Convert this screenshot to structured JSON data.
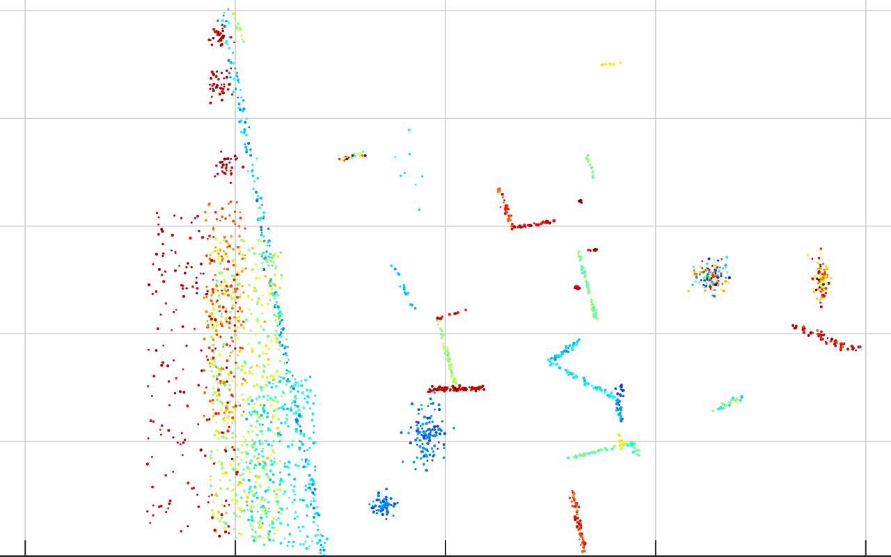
{
  "chart_data": {
    "type": "scatter",
    "title": "",
    "xlabel": "",
    "ylabel": "",
    "grid": true,
    "colormap": "jet",
    "color_range": [
      0,
      1
    ],
    "xlim": [
      -0.12,
      4.12
    ],
    "ylim": [
      -0.06,
      5.1
    ],
    "xticks": [
      0,
      1,
      2,
      3,
      4
    ],
    "yticks": [
      1,
      2,
      3,
      4,
      5
    ],
    "colors": {
      "grid": "#c8c8c8",
      "axis": "#262626",
      "background": "#ffffff"
    },
    "clusters": [
      {
        "name": "left-wall-line",
        "kind": "line",
        "from": [
          0.94,
          5.0
        ],
        "to": [
          1.42,
          -0.05
        ],
        "count": 260,
        "spread": 0.012,
        "c": [
          0.22,
          0.45
        ]
      },
      {
        "name": "ground-band-yellow-green",
        "kind": "box",
        "x": [
          0.88,
          1.22
        ],
        "y": [
          0.1,
          2.9
        ],
        "count": 520,
        "c": [
          0.45,
          0.7
        ]
      },
      {
        "name": "ground-band-cyan",
        "kind": "box",
        "x": [
          1.05,
          1.38
        ],
        "y": [
          0.0,
          1.6
        ],
        "count": 260,
        "c": [
          0.3,
          0.45
        ]
      },
      {
        "name": "ground-band-orange",
        "kind": "box",
        "x": [
          0.85,
          1.05
        ],
        "y": [
          1.2,
          3.3
        ],
        "count": 160,
        "c": [
          0.72,
          0.85
        ]
      },
      {
        "name": "curb-red-dots",
        "kind": "box",
        "x": [
          0.58,
          1.02
        ],
        "y": [
          0.12,
          2.7
        ],
        "count": 140,
        "c": [
          0.85,
          0.98
        ]
      },
      {
        "name": "tree-top-red",
        "kind": "blob",
        "center": [
          0.92,
          4.75
        ],
        "sx": 0.03,
        "sy": 0.05,
        "count": 30,
        "c": [
          0.88,
          1.0
        ]
      },
      {
        "name": "tree-mid-red",
        "kind": "blob",
        "center": [
          0.93,
          4.32
        ],
        "sx": 0.03,
        "sy": 0.08,
        "count": 35,
        "c": [
          0.88,
          1.0
        ]
      },
      {
        "name": "tree-low-red",
        "kind": "blob",
        "center": [
          0.96,
          3.55
        ],
        "sx": 0.03,
        "sy": 0.06,
        "count": 30,
        "c": [
          0.9,
          1.0
        ]
      },
      {
        "name": "far-left-red",
        "kind": "box",
        "x": [
          0.6,
          0.85
        ],
        "y": [
          2.3,
          3.2
        ],
        "count": 40,
        "c": [
          0.88,
          1.0
        ]
      },
      {
        "name": "top-upper-thin",
        "kind": "line",
        "from": [
          0.99,
          4.98
        ],
        "to": [
          1.04,
          4.72
        ],
        "count": 12,
        "spread": 0.005,
        "c": [
          0.45,
          0.6
        ]
      },
      {
        "name": "small-seg-upper",
        "kind": "line",
        "from": [
          1.5,
          3.62
        ],
        "to": [
          1.62,
          3.68
        ],
        "count": 22,
        "spread": 0.01,
        "c": [
          0.35,
          1.0
        ]
      },
      {
        "name": "corner-wall-vertical",
        "kind": "line",
        "from": [
          2.25,
          3.35
        ],
        "to": [
          2.32,
          3.0
        ],
        "count": 30,
        "spread": 0.008,
        "c": [
          0.75,
          0.92
        ]
      },
      {
        "name": "corner-wall-horizontal",
        "kind": "line",
        "from": [
          2.32,
          2.98
        ],
        "to": [
          2.52,
          3.05
        ],
        "count": 40,
        "spread": 0.008,
        "c": [
          0.85,
          0.98
        ]
      },
      {
        "name": "isolated-dark-dot",
        "kind": "blob",
        "center": [
          2.64,
          3.23
        ],
        "sx": 0.004,
        "sy": 0.006,
        "count": 4,
        "c": [
          0.98,
          1.0
        ]
      },
      {
        "name": "top-right-yellow",
        "kind": "line",
        "from": [
          2.74,
          4.5
        ],
        "to": [
          2.84,
          4.51
        ],
        "count": 8,
        "spread": 0.004,
        "c": [
          0.62,
          0.68
        ]
      },
      {
        "name": "top-right-green-seg",
        "kind": "line",
        "from": [
          2.67,
          3.66
        ],
        "to": [
          2.71,
          3.43
        ],
        "count": 14,
        "spread": 0.004,
        "c": [
          0.45,
          0.55
        ]
      },
      {
        "name": "sparse-cyan-upper",
        "kind": "box",
        "x": [
          1.74,
          1.9
        ],
        "y": [
          2.9,
          4.0
        ],
        "count": 8,
        "c": [
          0.3,
          0.4
        ]
      },
      {
        "name": "pole-green",
        "kind": "line",
        "from": [
          1.96,
          2.16
        ],
        "to": [
          2.05,
          1.5
        ],
        "count": 45,
        "spread": 0.005,
        "c": [
          0.45,
          0.6
        ]
      },
      {
        "name": "pole-top-red",
        "kind": "line",
        "from": [
          1.96,
          2.14
        ],
        "to": [
          2.1,
          2.22
        ],
        "count": 12,
        "spread": 0.005,
        "c": [
          0.85,
          0.95
        ]
      },
      {
        "name": "red-bar-center",
        "kind": "line",
        "from": [
          1.92,
          1.48
        ],
        "to": [
          2.18,
          1.5
        ],
        "count": 80,
        "spread": 0.012,
        "c": [
          0.88,
          1.0
        ]
      },
      {
        "name": "cyan-dots-mid",
        "kind": "line",
        "from": [
          1.75,
          2.65
        ],
        "to": [
          1.85,
          2.22
        ],
        "count": 14,
        "spread": 0.01,
        "c": [
          0.28,
          0.36
        ]
      },
      {
        "name": "blue-blob-mid",
        "kind": "blob",
        "center": [
          1.91,
          1.05
        ],
        "sx": 0.04,
        "sy": 0.15,
        "count": 120,
        "c": [
          0.18,
          0.3
        ]
      },
      {
        "name": "blue-blob-bottom",
        "kind": "blob",
        "center": [
          1.7,
          0.4
        ],
        "sx": 0.025,
        "sy": 0.05,
        "count": 60,
        "c": [
          0.18,
          0.3
        ]
      },
      {
        "name": "diag-pole-green",
        "kind": "line",
        "from": [
          2.63,
          2.77
        ],
        "to": [
          2.72,
          2.12
        ],
        "count": 50,
        "spread": 0.005,
        "c": [
          0.42,
          0.55
        ]
      },
      {
        "name": "diag-pole-top-red",
        "kind": "blob",
        "center": [
          2.71,
          2.78
        ],
        "sx": 0.015,
        "sy": 0.006,
        "count": 10,
        "c": [
          0.88,
          1.0
        ]
      },
      {
        "name": "red-small-mid",
        "kind": "blob",
        "center": [
          2.63,
          2.43
        ],
        "sx": 0.01,
        "sy": 0.007,
        "count": 14,
        "c": [
          0.88,
          1.0
        ]
      },
      {
        "name": "v-shape-arm-up",
        "kind": "line",
        "from": [
          2.49,
          1.74
        ],
        "to": [
          2.64,
          1.94
        ],
        "count": 45,
        "spread": 0.01,
        "c": [
          0.25,
          0.38
        ]
      },
      {
        "name": "v-shape-arm-down",
        "kind": "line",
        "from": [
          2.49,
          1.74
        ],
        "to": [
          2.81,
          1.4
        ],
        "count": 60,
        "spread": 0.008,
        "c": [
          0.3,
          0.42
        ]
      },
      {
        "name": "v-shape-tail",
        "kind": "line",
        "from": [
          2.81,
          1.4
        ],
        "to": [
          2.84,
          1.2
        ],
        "count": 25,
        "spread": 0.006,
        "c": [
          0.22,
          0.32
        ]
      },
      {
        "name": "blue-dots-right",
        "kind": "blob",
        "center": [
          2.84,
          1.45
        ],
        "sx": 0.01,
        "sy": 0.06,
        "count": 14,
        "c": [
          0.15,
          0.24
        ]
      },
      {
        "name": "bottom-green-line",
        "kind": "line",
        "from": [
          2.6,
          0.85
        ],
        "to": [
          2.88,
          0.98
        ],
        "count": 50,
        "spread": 0.006,
        "c": [
          0.4,
          0.55
        ]
      },
      {
        "name": "bottom-yellow-stub",
        "kind": "blob",
        "center": [
          2.84,
          1.0
        ],
        "sx": 0.008,
        "sy": 0.04,
        "count": 12,
        "c": [
          0.55,
          0.68
        ]
      },
      {
        "name": "bottom-right-cyan-stub",
        "kind": "line",
        "from": [
          2.89,
          1.0
        ],
        "to": [
          2.92,
          0.85
        ],
        "count": 14,
        "spread": 0.008,
        "c": [
          0.35,
          0.5
        ]
      },
      {
        "name": "bottom-orange-bar",
        "kind": "line",
        "from": [
          2.6,
          0.55
        ],
        "to": [
          2.66,
          -0.02
        ],
        "count": 60,
        "spread": 0.008,
        "c": [
          0.75,
          0.95
        ]
      },
      {
        "name": "tree-right-1",
        "kind": "blob",
        "center": [
          3.26,
          2.54
        ],
        "sx": 0.04,
        "sy": 0.08,
        "count": 110,
        "c": [
          0.1,
          1.0
        ]
      },
      {
        "name": "tree-right-2",
        "kind": "blob",
        "center": [
          3.79,
          2.5
        ],
        "sx": 0.02,
        "sy": 0.1,
        "count": 90,
        "c": [
          0.5,
          1.0
        ]
      },
      {
        "name": "right-red-diagonal",
        "kind": "line",
        "from": [
          3.68,
          2.06
        ],
        "to": [
          3.95,
          1.85
        ],
        "count": 60,
        "spread": 0.02,
        "c": [
          0.8,
          1.0
        ]
      },
      {
        "name": "right-small-cyan",
        "kind": "line",
        "from": [
          3.25,
          1.25
        ],
        "to": [
          3.43,
          1.45
        ],
        "count": 30,
        "spread": 0.012,
        "c": [
          0.3,
          0.65
        ]
      }
    ]
  }
}
